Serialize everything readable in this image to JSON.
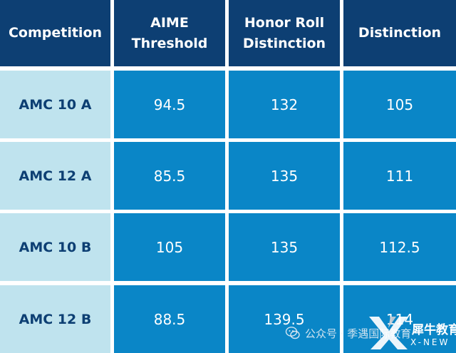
{
  "table": {
    "headers": [
      "Competition",
      "AIME\nThreshold",
      "Honor Roll\nDistinction",
      "Distinction"
    ],
    "rows": [
      [
        "AMC 10 A",
        "94.5",
        "132",
        "105"
      ],
      [
        "AMC 12 A",
        "85.5",
        "135",
        "111"
      ],
      [
        "AMC 10 B",
        "105",
        "135",
        "112.5"
      ],
      [
        "AMC 12 B",
        "88.5",
        "139.5",
        "114"
      ]
    ]
  },
  "watermark": {
    "text": "公众号 · 季遇国际教育",
    "logo_name": "犀牛教育",
    "logo_sub": "X-NEW",
    "icon": "wechat-icon",
    "logo_icon": "x-logo-icon"
  },
  "colors": {
    "header_bg": "#0d3f73",
    "label_bg": "#bfe3ee",
    "value_bg": "#0a86c7"
  }
}
